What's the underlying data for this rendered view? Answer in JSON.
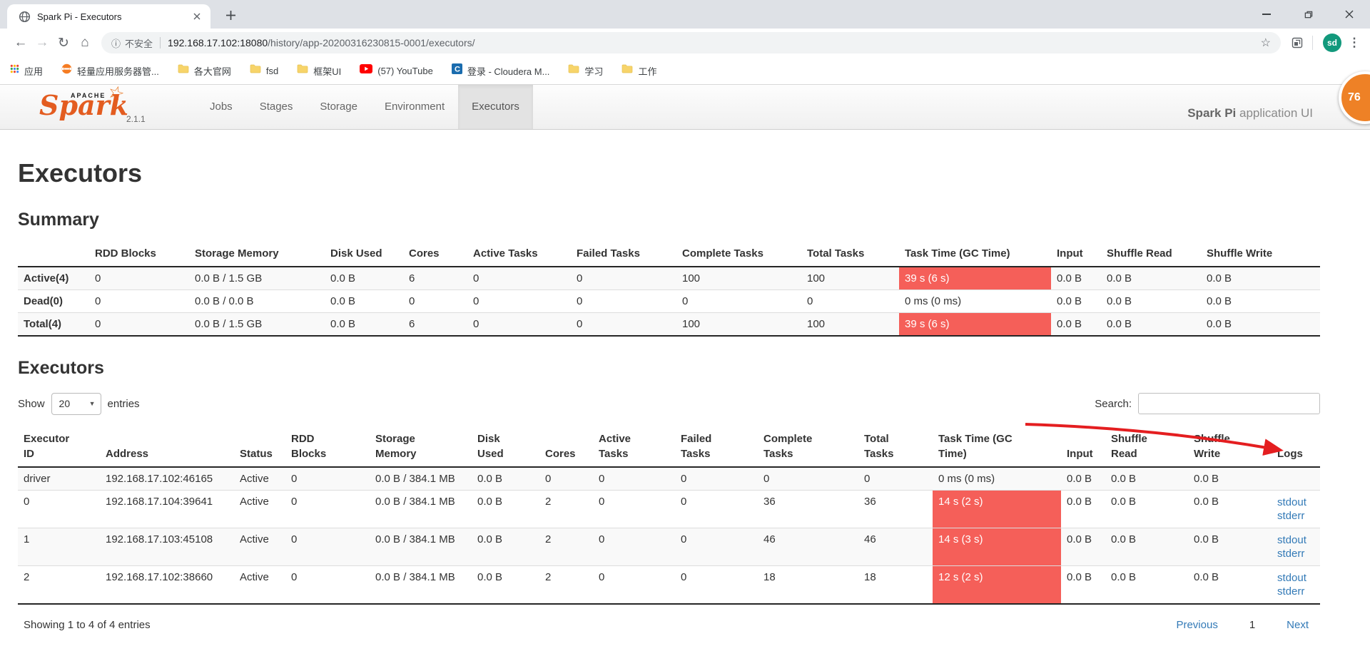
{
  "browser": {
    "tab": {
      "title": "Spark Pi - Executors"
    },
    "address_bar": {
      "security_label": "不安全",
      "url_host": "192.168.17.102:18080",
      "url_path": "/history/app-20200316230815-0001/executors/"
    },
    "avatar_label": "sd",
    "bookmarks": [
      {
        "label": "应用",
        "icon": "apps-grid-icon"
      },
      {
        "label": "轻量应用服务器管...",
        "icon": "orange-app-icon"
      },
      {
        "label": "各大官网",
        "icon": "folder-icon"
      },
      {
        "label": "fsd",
        "icon": "folder-icon"
      },
      {
        "label": "框架UI",
        "icon": "folder-icon"
      },
      {
        "label": "(57) YouTube",
        "icon": "youtube-icon"
      },
      {
        "label": "登录 - Cloudera M...",
        "icon": "cloudera-icon"
      },
      {
        "label": "学习",
        "icon": "folder-icon"
      },
      {
        "label": "工作",
        "icon": "folder-icon"
      }
    ]
  },
  "icons": {
    "back": "←",
    "forward": "→",
    "reload": "↻",
    "home": "⌂",
    "info": "ⓘ",
    "star": "☆",
    "kebab": "⋮",
    "caret": "▼"
  },
  "navbar": {
    "logo_apache": "APACHE",
    "logo_spark": "Spark",
    "version": "2.1.1",
    "tabs": [
      {
        "label": "Jobs"
      },
      {
        "label": "Stages"
      },
      {
        "label": "Storage"
      },
      {
        "label": "Environment"
      },
      {
        "label": "Executors",
        "active": true
      }
    ],
    "app_title_bold": "Spark Pi",
    "app_title_rest": " application UI"
  },
  "overlay_badge": "76",
  "page": {
    "title": "Executors",
    "summary_heading": "Summary",
    "executors_heading": "Executors"
  },
  "summary_table": {
    "columns": [
      "",
      "RDD Blocks",
      "Storage Memory",
      "Disk Used",
      "Cores",
      "Active Tasks",
      "Failed Tasks",
      "Complete Tasks",
      "Total Tasks",
      "Task Time (GC Time)",
      "Input",
      "Shuffle Read",
      "Shuffle Write"
    ],
    "rows": [
      {
        "label": "Active(4)",
        "values": [
          "0",
          "0.0 B / 1.5 GB",
          "0.0 B",
          "6",
          "0",
          "0",
          "100",
          "100",
          "39 s (6 s)",
          "0.0 B",
          "0.0 B",
          "0.0 B"
        ],
        "task_time_highlight": true
      },
      {
        "label": "Dead(0)",
        "values": [
          "0",
          "0.0 B / 0.0 B",
          "0.0 B",
          "0",
          "0",
          "0",
          "0",
          "0",
          "0 ms (0 ms)",
          "0.0 B",
          "0.0 B",
          "0.0 B"
        ],
        "task_time_highlight": false
      },
      {
        "label": "Total(4)",
        "values": [
          "0",
          "0.0 B / 1.5 GB",
          "0.0 B",
          "6",
          "0",
          "0",
          "100",
          "100",
          "39 s (6 s)",
          "0.0 B",
          "0.0 B",
          "0.0 B"
        ],
        "task_time_highlight": true
      }
    ]
  },
  "table_controls": {
    "show_label": "Show",
    "page_size": "20",
    "entries_label": "entries",
    "search_label": "Search:",
    "search_value": ""
  },
  "executors_table": {
    "columns": [
      "Executor ID",
      "Address",
      "Status",
      "RDD Blocks",
      "Storage Memory",
      "Disk Used",
      "Cores",
      "Active Tasks",
      "Failed Tasks",
      "Complete Tasks",
      "Total Tasks",
      "Task Time (GC Time)",
      "Input",
      "Shuffle Read",
      "Shuffle Write",
      "Logs"
    ],
    "rows": [
      {
        "values": [
          "driver",
          "192.168.17.102:46165",
          "Active",
          "0",
          "0.0 B / 384.1 MB",
          "0.0 B",
          "0",
          "0",
          "0",
          "0",
          "0",
          "0 ms (0 ms)",
          "0.0 B",
          "0.0 B",
          "0.0 B"
        ],
        "logs": [],
        "task_time_highlight": false
      },
      {
        "values": [
          "0",
          "192.168.17.104:39641",
          "Active",
          "0",
          "0.0 B / 384.1 MB",
          "0.0 B",
          "2",
          "0",
          "0",
          "36",
          "36",
          "14 s (2 s)",
          "0.0 B",
          "0.0 B",
          "0.0 B"
        ],
        "logs": [
          "stdout",
          "stderr"
        ],
        "task_time_highlight": true
      },
      {
        "values": [
          "1",
          "192.168.17.103:45108",
          "Active",
          "0",
          "0.0 B / 384.1 MB",
          "0.0 B",
          "2",
          "0",
          "0",
          "46",
          "46",
          "14 s (3 s)",
          "0.0 B",
          "0.0 B",
          "0.0 B"
        ],
        "logs": [
          "stdout",
          "stderr"
        ],
        "task_time_highlight": true
      },
      {
        "values": [
          "2",
          "192.168.17.102:38660",
          "Active",
          "0",
          "0.0 B / 384.1 MB",
          "0.0 B",
          "2",
          "0",
          "0",
          "18",
          "18",
          "12 s (2 s)",
          "0.0 B",
          "0.0 B",
          "0.0 B"
        ],
        "logs": [
          "stdout",
          "stderr"
        ],
        "task_time_highlight": true
      }
    ]
  },
  "footer": {
    "showing_text": "Showing 1 to 4 of 4 entries",
    "pagination": {
      "previous": "Previous",
      "current_page": "1",
      "next": "Next"
    }
  },
  "colors": {
    "task_time_highlight": "#f55f59",
    "link_blue": "#337ab7",
    "annotation_arrow": "#e41e20",
    "spark_orange": "#e35c20",
    "avatar_green": "#12997c",
    "badge_orange": "#ee8126"
  }
}
